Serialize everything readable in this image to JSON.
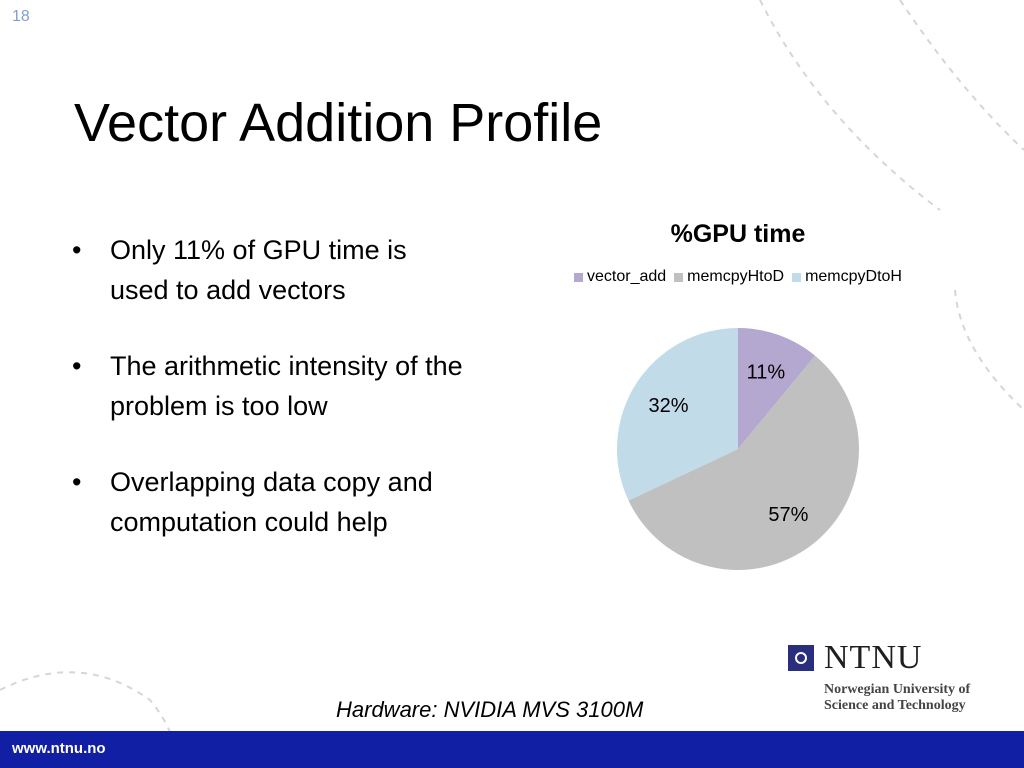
{
  "slide": {
    "number": "18",
    "title": "Vector Addition Profile",
    "bullets": [
      {
        "text": "Only 11% of GPU time is used to add vectors"
      },
      {
        "text": "The arithmetic intensity of the problem is too low"
      },
      {
        "text": "Overlapping data copy and computation could help"
      }
    ],
    "bullet_symbol": "•",
    "caption": "Hardware: NVIDIA MVS 3100M"
  },
  "logo": {
    "name": "NTNU",
    "line1": "Norwegian University of",
    "line2": "Science and Technology"
  },
  "footer": {
    "url": "www.ntnu.no",
    "color": "#101fa3"
  },
  "chart_data": {
    "type": "pie",
    "title": "%GPU time",
    "legend_position": "top",
    "categories": [
      "vector_add",
      "memcpyHtoD",
      "memcpyDtoH"
    ],
    "values": [
      11,
      57,
      32
    ],
    "labels": [
      "11%",
      "57%",
      "32%"
    ],
    "colors": [
      "#b4a7d0",
      "#c0c0c0",
      "#c1dbe8"
    ]
  }
}
